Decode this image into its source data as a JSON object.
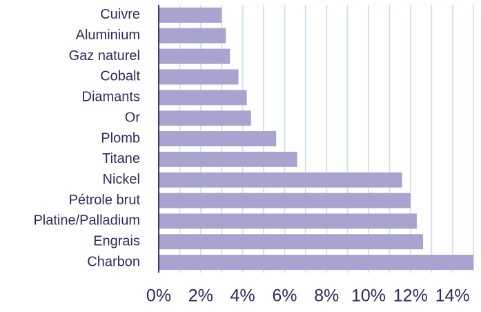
{
  "chart_data": {
    "type": "barh",
    "categories": [
      "Cuivre",
      "Aluminium",
      "Gaz naturel",
      "Cobalt",
      "Diamants",
      "Or",
      "Plomb",
      "Titane",
      "Nickel",
      "Pétrole brut",
      "Platine/Palladium",
      "Engrais",
      "Charbon"
    ],
    "values": [
      3.0,
      3.2,
      3.4,
      3.8,
      4.2,
      4.4,
      5.6,
      6.6,
      11.6,
      12.0,
      12.3,
      12.6,
      15.0
    ],
    "color": "#a9a3d0",
    "xlim": [
      0,
      15
    ],
    "xticks": [
      {
        "value": 0,
        "label": "0%"
      },
      {
        "value": 2,
        "label": "2%"
      },
      {
        "value": 4,
        "label": "4%"
      },
      {
        "value": 6,
        "label": "6%"
      },
      {
        "value": 8,
        "label": "8%"
      },
      {
        "value": 10,
        "label": "10%"
      },
      {
        "value": 12,
        "label": "12%"
      },
      {
        "value": 14,
        "label": "14%"
      }
    ],
    "xgrid": [
      1,
      2,
      3,
      4,
      5,
      6,
      7,
      8,
      9,
      10,
      11,
      12,
      13,
      14,
      15
    ],
    "grid_color": "#cfe3f0"
  }
}
